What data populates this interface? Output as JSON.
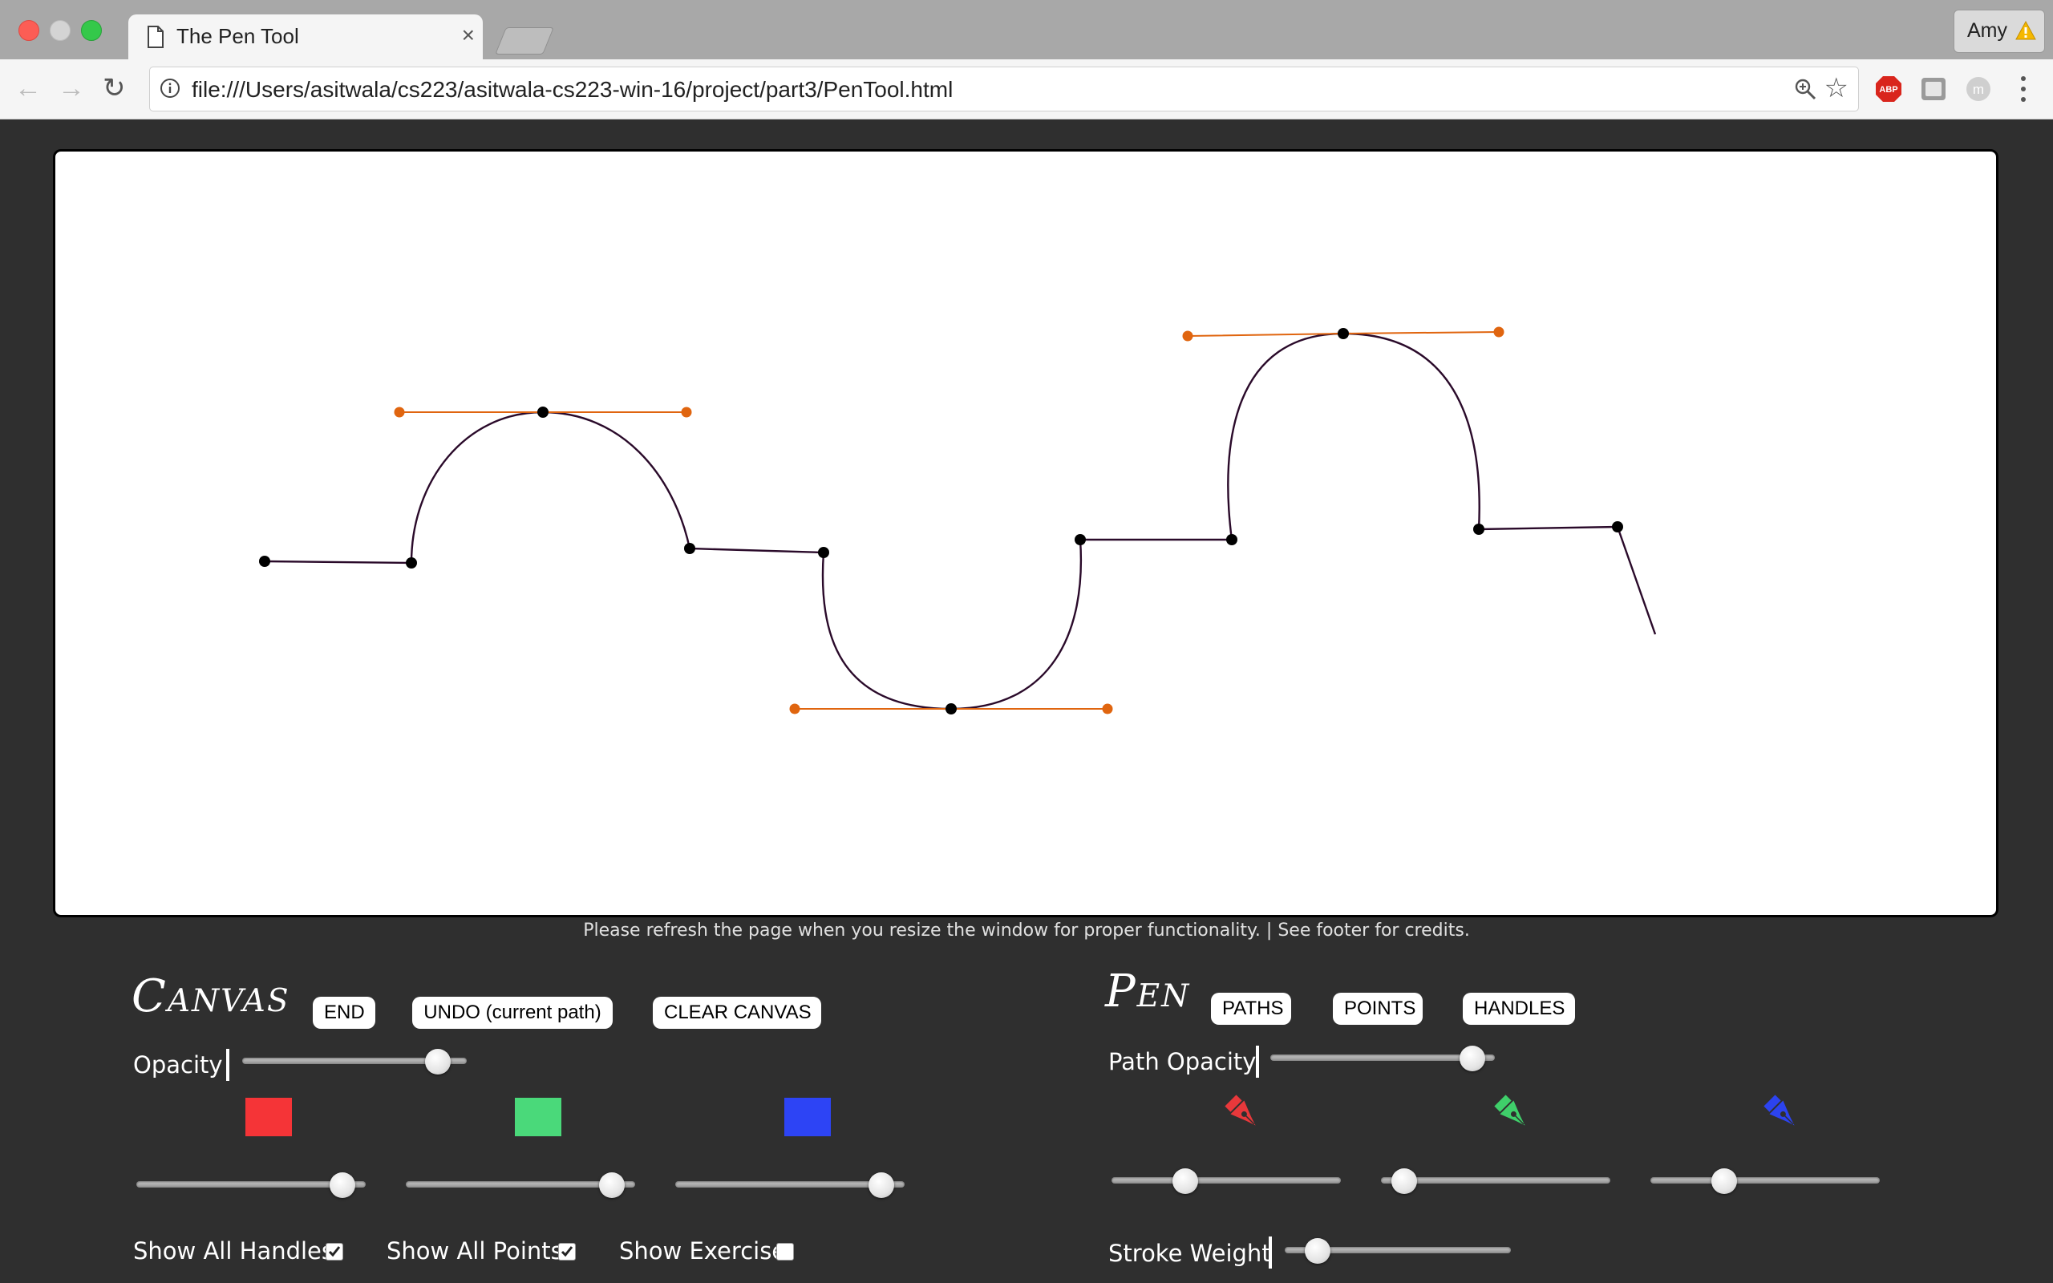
{
  "browser": {
    "tab_title": "The Pen Tool",
    "tab_close": "×",
    "profile_name": "Amy",
    "url": "file:///Users/asitwala/cs223/asitwala-cs223-win-16/project/part3/PenTool.html",
    "extensions": [
      "ABP",
      "extension",
      "m"
    ],
    "icons": [
      "back-icon",
      "forward-icon",
      "reload-icon",
      "info-icon",
      "zoom-icon",
      "star-icon",
      "menu-icon"
    ]
  },
  "notice": "Please refresh the page when you resize the window for proper functionality. | See footer for credits.",
  "canvas_panel": {
    "title": "Canvas",
    "buttons": [
      "END",
      "UNDO (current path)",
      "CLEAR CANVAS"
    ],
    "opacity_label": "Opacity",
    "opacity_value": 0.92,
    "swatches": [
      {
        "name": "red",
        "color": "#f53437",
        "value": 0.95
      },
      {
        "name": "green",
        "color": "#4ad97a",
        "value": 0.95
      },
      {
        "name": "blue",
        "color": "#2d44f5",
        "value": 0.95
      }
    ],
    "checkboxes": [
      {
        "label": "Show All Handles",
        "checked": true
      },
      {
        "label": "Show All Points",
        "checked": true
      },
      {
        "label": "Show Exercise",
        "checked": false
      }
    ]
  },
  "pen_panel": {
    "title": "Pen",
    "buttons": [
      "PATHS",
      "POINTS",
      "HANDLES"
    ],
    "path_opacity_label": "Path Opacity",
    "path_opacity_value": 0.95,
    "pens": [
      {
        "name": "red",
        "color": "#e8383b",
        "value": 0.3
      },
      {
        "name": "green",
        "color": "#3fcf6a",
        "value": 0.05
      },
      {
        "name": "blue",
        "color": "#2c43ef",
        "value": 0.3
      }
    ],
    "stroke_weight_label": "Stroke Weight",
    "stroke_weight_value": 0.1
  },
  "drawing": {
    "stroke_color": "#2a0a2a",
    "handle_color": "#e0650f",
    "point_color": "#000000"
  }
}
